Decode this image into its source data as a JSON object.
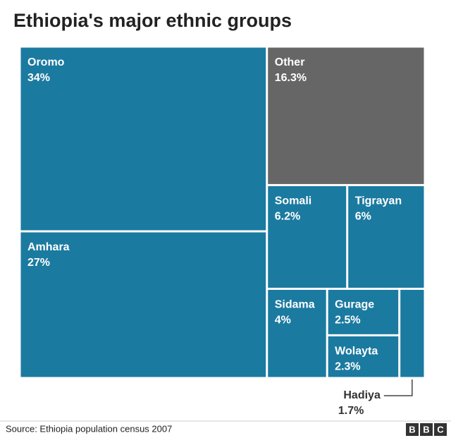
{
  "chart_data": {
    "type": "treemap",
    "title": "Ethiopia's major ethnic groups",
    "categories": [
      "Oromo",
      "Amhara",
      "Other",
      "Somali",
      "Tigrayan",
      "Sidama",
      "Gurage",
      "Wolayta",
      "Hadiya"
    ],
    "values": [
      34,
      27,
      16.3,
      6.2,
      6,
      4,
      2.5,
      2.3,
      1.7
    ],
    "value_labels": [
      "34%",
      "27%",
      "16.3%",
      "6.2%",
      "6%",
      "4%",
      "2.5%",
      "2.3%",
      "1.7%"
    ],
    "colors": [
      "#1b7aa0",
      "#1b7aa0",
      "#666666",
      "#1b7aa0",
      "#1b7aa0",
      "#1b7aa0",
      "#1b7aa0",
      "#1b7aa0",
      "#1b7aa0"
    ],
    "source": "Source: Ethiopia population census 2007",
    "logo": [
      "B",
      "B",
      "C"
    ]
  }
}
